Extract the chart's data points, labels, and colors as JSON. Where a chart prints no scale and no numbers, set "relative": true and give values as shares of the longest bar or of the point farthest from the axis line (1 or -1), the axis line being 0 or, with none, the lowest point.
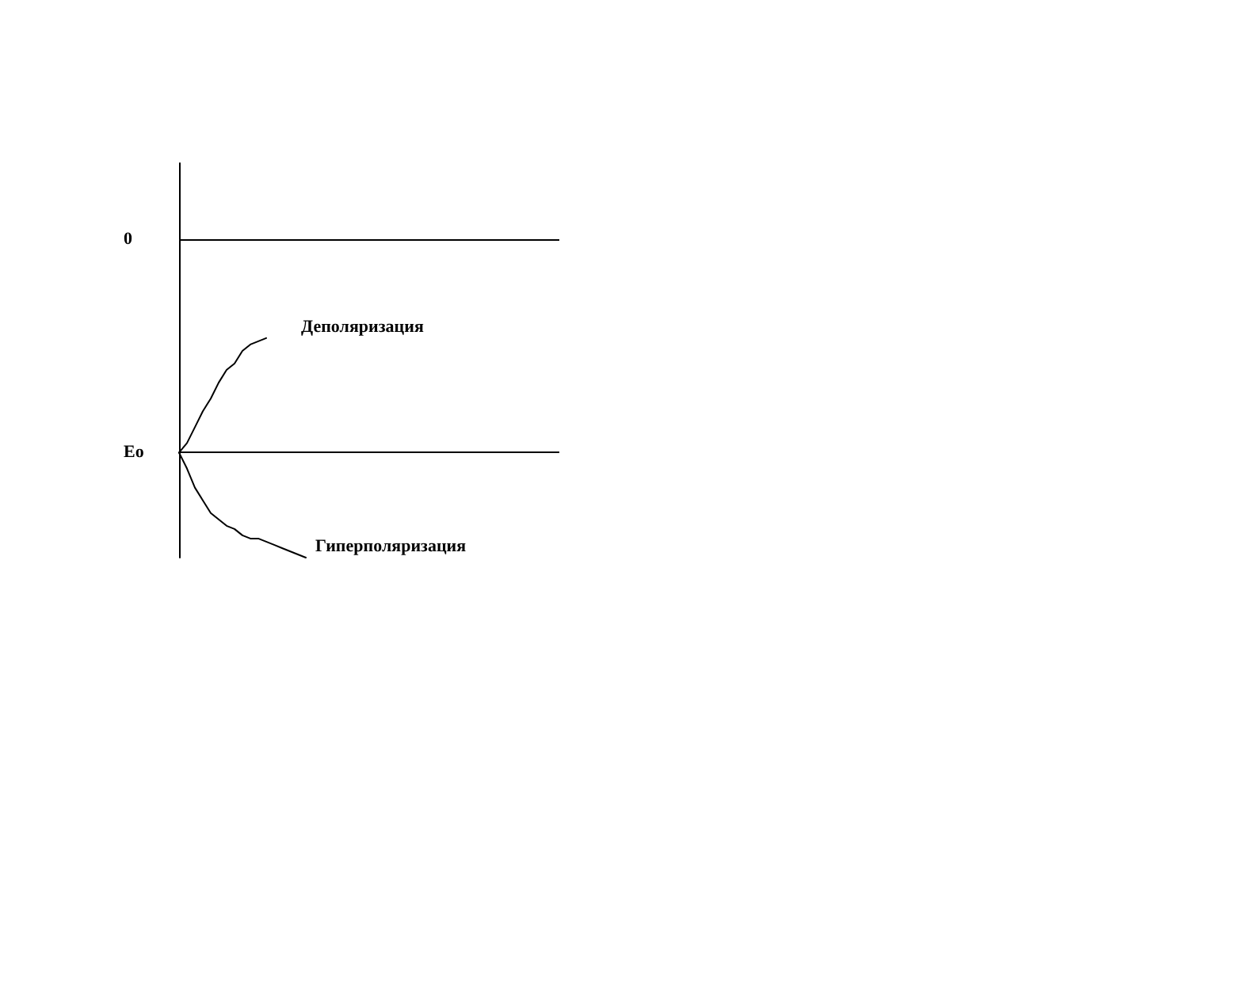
{
  "chart_data": {
    "type": "line",
    "relative": true,
    "categories": [
      null,
      null,
      null,
      null,
      null,
      null,
      null,
      null,
      null,
      null,
      null,
      null,
      null,
      null,
      null,
      null,
      null,
      null,
      null,
      null,
      null,
      null,
      null,
      null,
      null,
      null,
      null,
      null,
      null,
      null,
      null,
      null,
      null,
      null,
      null,
      null,
      null,
      null,
      null,
      null,
      null,
      null,
      null,
      null,
      null,
      null,
      null,
      null,
      null
    ],
    "series": [
      {
        "name": "Деполяризация",
        "color": "#000000",
        "values": [
          -0.67,
          -0.64,
          -0.59,
          -0.54,
          -0.5,
          -0.45,
          -0.41,
          -0.39,
          -0.35,
          -0.33,
          -0.32,
          -0.31,
          null,
          null,
          null,
          null,
          null,
          null,
          null,
          null,
          null,
          null,
          null,
          null,
          null,
          null,
          null,
          null,
          null,
          null,
          null,
          null,
          null,
          null,
          null,
          null,
          null,
          null,
          null,
          null,
          null,
          null,
          null,
          null,
          null,
          null,
          null,
          null,
          null
        ]
      },
      {
        "name": "Гиперполяризация",
        "color": "#000000",
        "values": [
          -0.67,
          -0.72,
          -0.78,
          -0.82,
          -0.86,
          -0.88,
          -0.9,
          -0.91,
          -0.93,
          -0.94,
          -0.94,
          -0.95,
          -0.96,
          -0.97,
          -0.98,
          -0.99,
          -1,
          null,
          null,
          null,
          null,
          null,
          null,
          null,
          null,
          null,
          null,
          null,
          null,
          null,
          null,
          null,
          null,
          null,
          null,
          null,
          null,
          null,
          null,
          null,
          null,
          null,
          null,
          null,
          null,
          null,
          null,
          null,
          null
        ]
      }
    ],
    "ref_lines": [
      {
        "axis": "y",
        "value": 0,
        "label": "0",
        "color": "#000000"
      },
      {
        "axis": "y",
        "value": -0.67,
        "label": "Eo",
        "color": "#000000"
      }
    ],
    "line_style": "solid"
  }
}
